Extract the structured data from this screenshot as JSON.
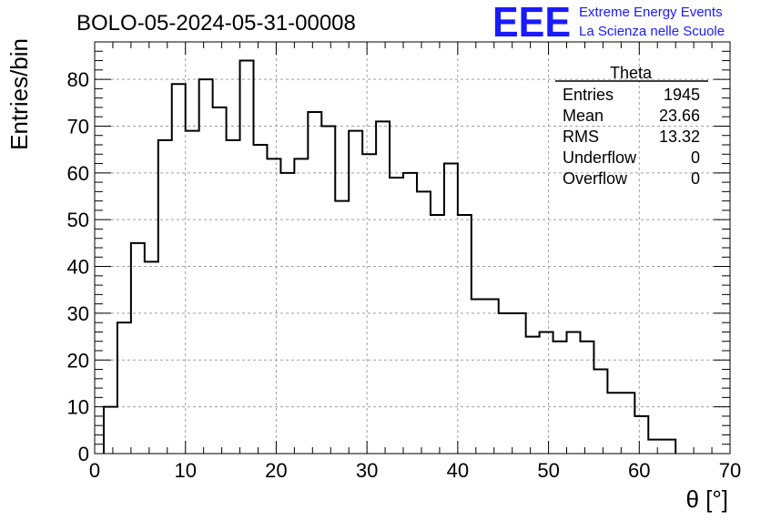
{
  "header": {
    "run_title": "BOLO-05-2024-05-31-00008",
    "logo_text": "EEE",
    "project_line1": "Extreme Energy Events",
    "project_line2": "La Scienza nelle Scuole",
    "brand_color": "#1a1aff"
  },
  "stats": {
    "title": "Theta",
    "rows": [
      {
        "label": "Entries",
        "value": "1945"
      },
      {
        "label": "Mean",
        "value": "23.66"
      },
      {
        "label": "RMS",
        "value": "13.32"
      },
      {
        "label": "Underflow",
        "value": "0"
      },
      {
        "label": "Overflow",
        "value": "0"
      }
    ]
  },
  "chart_data": {
    "type": "histogram",
    "title": "BOLO-05-2024-05-31-00008",
    "xlabel": "θ [°]",
    "ylabel": "Entries/bin",
    "xlim": [
      0,
      70
    ],
    "ylim": [
      0,
      88
    ],
    "xticks": [
      0,
      10,
      20,
      30,
      40,
      50,
      60,
      70
    ],
    "yticks": [
      0,
      10,
      20,
      30,
      40,
      50,
      60,
      70,
      80
    ],
    "grid": true,
    "bin_width": 1.5,
    "bin_start": 1.0,
    "values": [
      10,
      28,
      45,
      41,
      67,
      79,
      69,
      80,
      74,
      67,
      84,
      66,
      63,
      60,
      63,
      73,
      70,
      54,
      69,
      64,
      71,
      59,
      60,
      56,
      51,
      62,
      51,
      33,
      33,
      30,
      30,
      25,
      26,
      24,
      26,
      24,
      18,
      13,
      13,
      8,
      3,
      3
    ]
  }
}
